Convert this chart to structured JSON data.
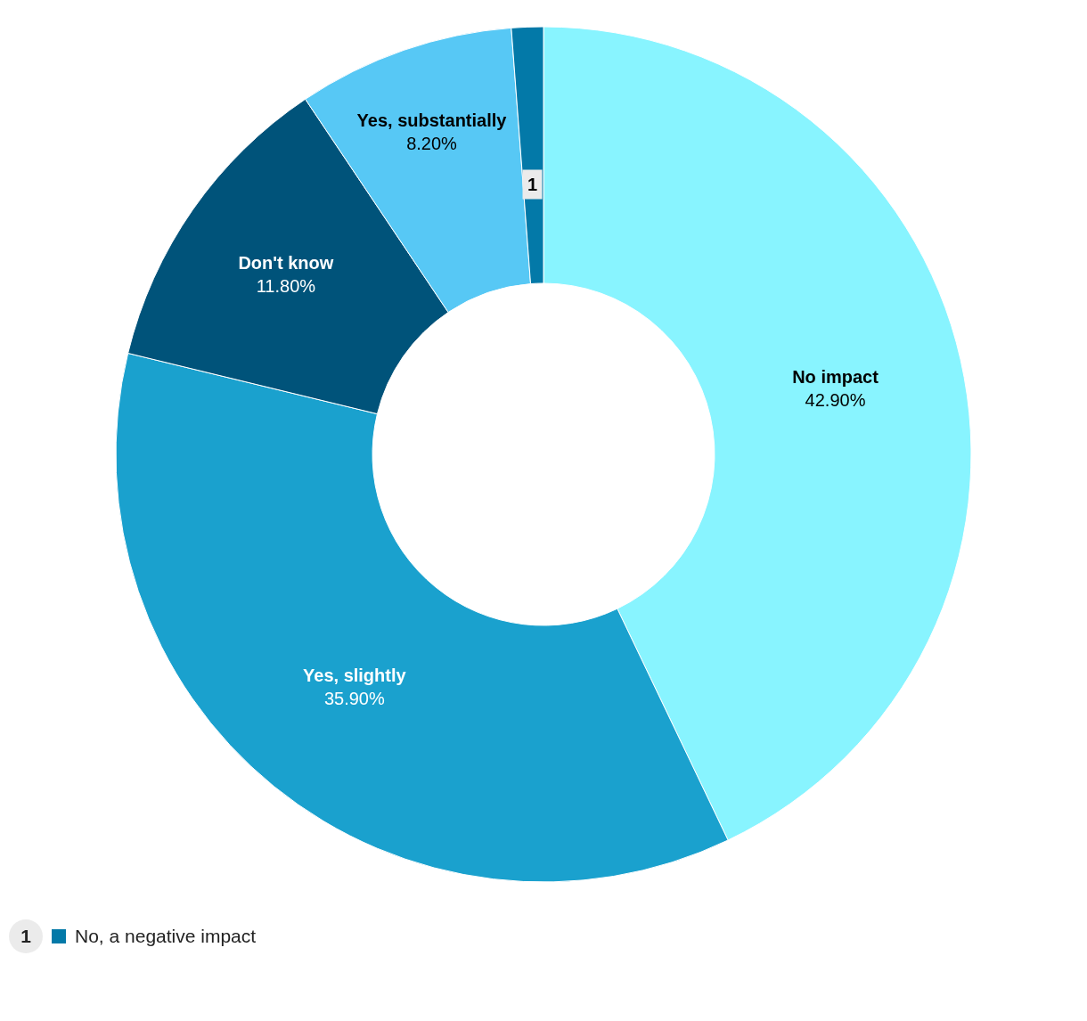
{
  "chart_data": {
    "type": "donut",
    "categories": [
      "No impact",
      "Yes, slightly",
      "Don't know",
      "Yes, substantially",
      "No, a negative impact"
    ],
    "values": [
      42.9,
      35.9,
      11.8,
      8.2,
      1.2
    ],
    "colors": [
      "#88f4ff",
      "#1aa1ce",
      "#00537a",
      "#57c8f5",
      "#0379a8"
    ],
    "value_labels": [
      "42.90%",
      "35.90%",
      "11.80%",
      "8.20%",
      null
    ],
    "annotations": [
      "1"
    ],
    "legend": "bottom left"
  }
}
